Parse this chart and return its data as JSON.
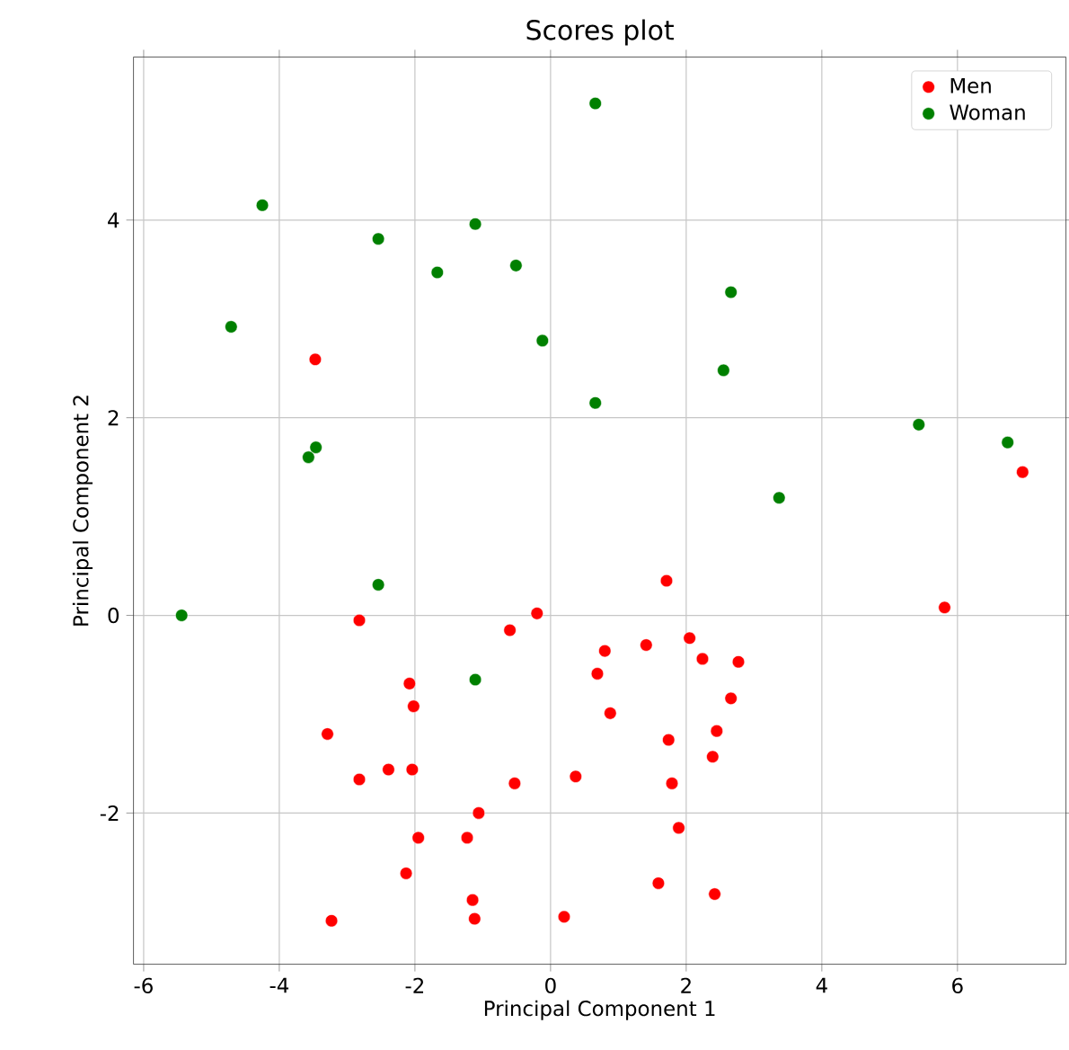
{
  "chart_data": {
    "type": "scatter",
    "title": "Scores plot",
    "xlabel": "Principal Component 1",
    "ylabel": "Principal Component 2",
    "series": [
      {
        "name": "Men",
        "color": "#ff0000",
        "x": [
          -3.47,
          -2.82,
          -0.6,
          -0.2,
          1.71,
          5.81,
          6.96,
          -2.08,
          -2.02,
          -3.29,
          -2.39,
          -2.04,
          -2.82,
          -0.53,
          0.37,
          -1.06,
          -1.95,
          -1.23,
          -2.13,
          -1.15,
          -1.12,
          -3.23,
          0.2,
          0.8,
          1.41,
          2.05,
          2.24,
          2.77,
          0.69,
          2.66,
          0.88,
          2.45,
          1.74,
          2.39,
          1.79,
          1.89,
          1.59,
          2.42
        ],
        "values": [
          2.59,
          -0.05,
          -0.15,
          0.02,
          0.35,
          0.08,
          1.45,
          -0.69,
          -0.92,
          -1.2,
          -1.56,
          -1.56,
          -1.66,
          -1.7,
          -1.63,
          -2.0,
          -2.25,
          -2.25,
          -2.61,
          -2.88,
          -3.07,
          -3.09,
          -3.05,
          -0.36,
          -0.3,
          -0.23,
          -0.44,
          -0.47,
          -0.59,
          -0.84,
          -0.99,
          -1.17,
          -1.26,
          -1.43,
          -1.7,
          -2.15,
          -2.71,
          -2.82
        ]
      },
      {
        "name": "Woman",
        "color": "#008000",
        "x": [
          -5.44,
          -4.71,
          -4.25,
          -3.57,
          -3.46,
          -2.54,
          -2.54,
          -1.67,
          -1.11,
          -0.51,
          -0.12,
          0.66,
          0.66,
          2.66,
          2.55,
          3.37,
          5.43,
          6.74,
          -1.11
        ],
        "values": [
          0.0,
          2.92,
          4.15,
          1.6,
          1.7,
          3.81,
          0.31,
          3.47,
          3.96,
          3.54,
          2.78,
          5.18,
          2.15,
          3.27,
          2.48,
          1.19,
          1.93,
          1.75,
          -0.65
        ]
      }
    ],
    "xlim": [
      -6.15,
      7.6
    ],
    "ylim": [
      -3.53,
      5.65
    ],
    "xticks": [
      -6,
      -4,
      -2,
      0,
      2,
      4,
      6
    ],
    "yticks": [
      -2,
      0,
      2,
      4
    ],
    "grid": true,
    "legend": "top right"
  }
}
